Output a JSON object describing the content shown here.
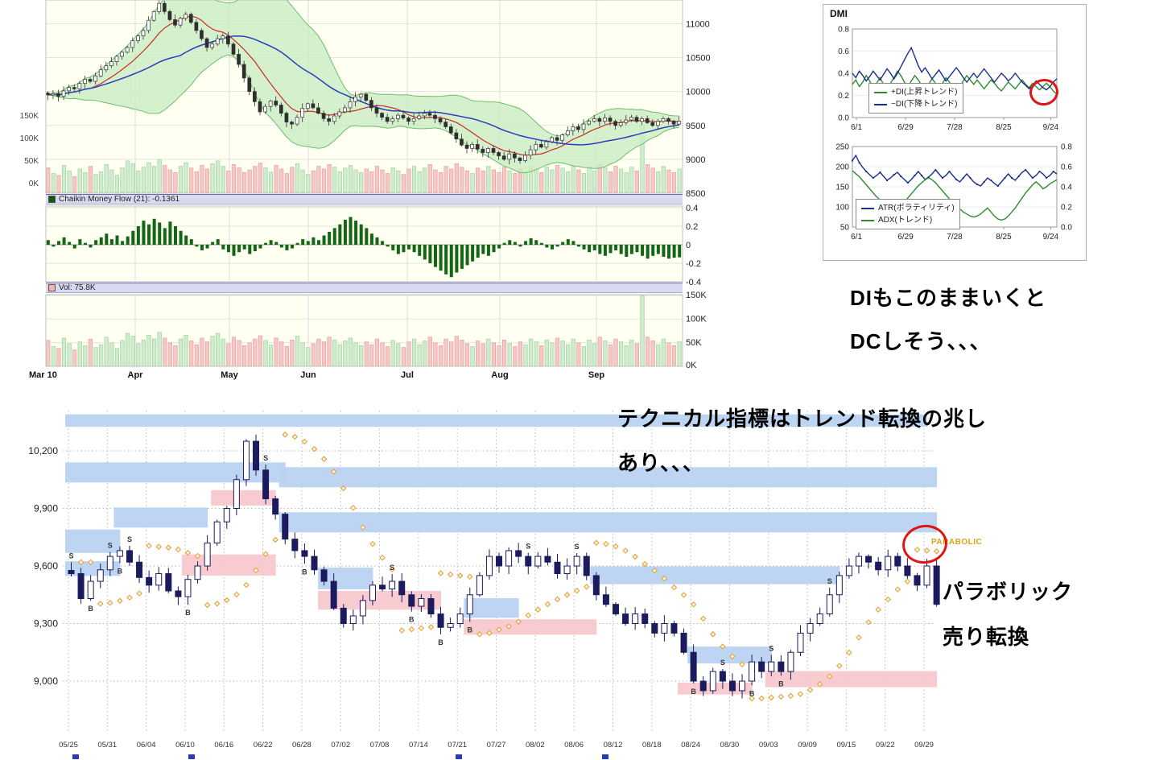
{
  "page": {
    "background": "#ffffff"
  },
  "annotations": {
    "dmi_comment_line1": "DIもこのままいくと",
    "dmi_comment_line2": "DCしそう、、、",
    "trend_comment_line1": "テクニカル指標はトレンド転換の兆し",
    "trend_comment_line2": "あり、、、",
    "parabolic_chart_label": "PARABOLIC",
    "parabolic_comment_line1": "パラボリック",
    "parabolic_comment_line2": "売り転換"
  },
  "colors": {
    "plot_bg": "#fffff2",
    "bollinger_fill": "#c9ecc2",
    "bollinger_edge": "#6cbf6c",
    "ma_fast": "#cc2b2b",
    "ma_slow": "#2b3dbb",
    "cmf_bar": "#136613",
    "vol_up": "#cfeccd",
    "vol_down": "#f7c6c6",
    "candle_dark": "#1b1b5e",
    "zone_blue": "#b9d3f2",
    "zone_pink": "#f8c8cd",
    "sar_dot": "#e5a23a",
    "red_circle": "#e01414",
    "di_plus": "#2e8b2e",
    "di_minus": "#1c2f8a"
  },
  "chart_data": [
    {
      "id": "main-price",
      "type": "candlestick",
      "x_labels": [
        "Mar 10",
        "Apr",
        "May",
        "Jun",
        "Jul",
        "Aug",
        "Sep"
      ],
      "y_ticks_right": [
        11000,
        10500,
        10000,
        9500,
        9000,
        8500
      ],
      "volume_y_ticks": [
        "150K",
        "100K",
        "50K",
        "0K"
      ],
      "overlays": [
        "Bollinger Bands",
        "fast MA (red)",
        "slow MA (blue)",
        "volume bars"
      ],
      "ylim": [
        8500,
        11350
      ],
      "closes": [
        9950,
        9970,
        9930,
        10010,
        10060,
        10040,
        10120,
        10180,
        10150,
        10230,
        10320,
        10380,
        10440,
        10520,
        10580,
        10650,
        10750,
        10820,
        10900,
        11050,
        11180,
        11300,
        11180,
        11060,
        10980,
        11080,
        11140,
        11020,
        10900,
        10780,
        10650,
        10700,
        10780,
        10820,
        10700,
        10550,
        10400,
        10200,
        10000,
        9850,
        9700,
        9780,
        9860,
        9800,
        9680,
        9550,
        9520,
        9620,
        9750,
        9820,
        9760,
        9680,
        9600,
        9560,
        9640,
        9700,
        9760,
        9850,
        9920,
        9960,
        9870,
        9760,
        9680,
        9620,
        9560,
        9600,
        9650,
        9610,
        9560,
        9600,
        9640,
        9680,
        9650,
        9600,
        9550,
        9480,
        9390,
        9300,
        9210,
        9160,
        9220,
        9150,
        9100,
        9160,
        9100,
        9050,
        9000,
        9080,
        9020,
        8980,
        9060,
        9140,
        9220,
        9180,
        9260,
        9320,
        9280,
        9360,
        9420,
        9480,
        9440,
        9520,
        9560,
        9600,
        9560,
        9610,
        9560,
        9500,
        9540,
        9580,
        9620,
        9560,
        9600,
        9540,
        9500,
        9560,
        9600,
        9560,
        9520,
        9560
      ],
      "volume_k": [
        55,
        42,
        38,
        60,
        48,
        35,
        52,
        44,
        58,
        40,
        46,
        62,
        50,
        38,
        55,
        70,
        64,
        48,
        56,
        66,
        58,
        72,
        60,
        50,
        44,
        58,
        66,
        54,
        46,
        60,
        52,
        64,
        70,
        58,
        48,
        62,
        55,
        44,
        50,
        58,
        65,
        55,
        45,
        60,
        52,
        42,
        56,
        64,
        50,
        40,
        48,
        58,
        52,
        62,
        56,
        46,
        54,
        60,
        50,
        44,
        52,
        46,
        58,
        50,
        42,
        55,
        48,
        40,
        52,
        58,
        46,
        54,
        62,
        50,
        44,
        58,
        52,
        64,
        56,
        48,
        42,
        54,
        48,
        58,
        50,
        44,
        56,
        48,
        42,
        52,
        46,
        58,
        52,
        44,
        56,
        50,
        60,
        54,
        46,
        58,
        50,
        42,
        56,
        48,
        62,
        54,
        46,
        58,
        52,
        44,
        56,
        48,
        150,
        62,
        54,
        46,
        58,
        50,
        44,
        52
      ]
    },
    {
      "id": "chaikin-money-flow",
      "type": "bar",
      "title": "Chaikin Money Flow (21): -0.1361",
      "y_ticks": [
        "0.4",
        "0.2",
        "0",
        "-0.2",
        "-0.4"
      ],
      "values": [
        0.05,
        -0.02,
        0.04,
        0.08,
        0.03,
        -0.04,
        0.06,
        0.02,
        -0.03,
        0.05,
        0.08,
        0.12,
        0.06,
        0.1,
        0.04,
        0.09,
        0.15,
        0.2,
        0.26,
        0.22,
        0.28,
        0.24,
        0.18,
        0.25,
        0.2,
        0.15,
        0.1,
        0.06,
        -0.02,
        -0.06,
        -0.04,
        0.03,
        0.06,
        -0.05,
        -0.08,
        -0.12,
        -0.08,
        -0.05,
        -0.1,
        -0.07,
        -0.04,
        0.02,
        0.05,
        0.03,
        -0.03,
        -0.06,
        -0.04,
        0.02,
        0.06,
        0.04,
        0.08,
        0.05,
        0.1,
        0.14,
        0.18,
        0.22,
        0.27,
        0.3,
        0.26,
        0.22,
        0.18,
        0.12,
        0.08,
        0.04,
        -0.02,
        -0.06,
        -0.1,
        -0.08,
        -0.05,
        -0.08,
        -0.12,
        -0.16,
        -0.2,
        -0.24,
        -0.28,
        -0.32,
        -0.35,
        -0.3,
        -0.26,
        -0.22,
        -0.18,
        -0.14,
        -0.1,
        -0.12,
        -0.08,
        -0.04,
        0.02,
        0.05,
        0.03,
        -0.02,
        0.04,
        0.07,
        0.05,
        0.02,
        -0.03,
        -0.05,
        -0.02,
        0.03,
        0.06,
        0.04,
        -0.02,
        -0.05,
        -0.08,
        -0.06,
        -0.1,
        -0.12,
        -0.09,
        -0.06,
        -0.1,
        -0.13,
        -0.1,
        -0.08,
        -0.12,
        -0.15,
        -0.12,
        -0.1,
        -0.13,
        -0.15,
        -0.14,
        -0.1361
      ]
    },
    {
      "id": "volume-panel",
      "type": "bar",
      "title": "Vol: 75.8K",
      "y_ticks": [
        "150K",
        "100K",
        "50K",
        "0K"
      ]
    },
    {
      "id": "dmi-di",
      "type": "line",
      "title": "DMI",
      "y_ticks": [
        "0.8",
        "0.6",
        "0.4",
        "0.2",
        "0.0"
      ],
      "x_labels": [
        "6/1",
        "6/29",
        "7/28",
        "8/25",
        "9/24"
      ],
      "series": [
        {
          "name": "+DI(上昇トレンド)",
          "color": "#2e8b2e",
          "values": [
            0.3,
            0.34,
            0.28,
            0.32,
            0.38,
            0.33,
            0.27,
            0.31,
            0.36,
            0.3,
            0.26,
            0.31,
            0.36,
            0.42,
            0.38,
            0.32,
            0.28,
            0.33,
            0.38,
            0.34,
            0.29,
            0.25,
            0.3,
            0.35,
            0.31,
            0.27,
            0.31,
            0.36,
            0.32,
            0.28,
            0.24,
            0.28,
            0.33,
            0.38,
            0.34,
            0.3,
            0.34,
            0.3,
            0.26,
            0.3,
            0.34,
            0.31,
            0.27,
            0.24,
            0.28,
            0.32,
            0.29,
            0.26,
            0.3,
            0.34,
            0.3,
            0.27,
            0.31,
            0.28,
            0.25,
            0.28,
            0.31,
            0.28,
            0.24,
            0.21
          ]
        },
        {
          "name": "−DI(下降トレンド)",
          "color": "#1c2f8a",
          "values": [
            0.4,
            0.36,
            0.42,
            0.38,
            0.33,
            0.37,
            0.42,
            0.38,
            0.34,
            0.39,
            0.44,
            0.4,
            0.35,
            0.4,
            0.46,
            0.52,
            0.58,
            0.63,
            0.55,
            0.47,
            0.41,
            0.45,
            0.4,
            0.35,
            0.39,
            0.43,
            0.38,
            0.33,
            0.37,
            0.41,
            0.45,
            0.41,
            0.36,
            0.32,
            0.36,
            0.4,
            0.36,
            0.4,
            0.44,
            0.4,
            0.36,
            0.32,
            0.36,
            0.4,
            0.37,
            0.33,
            0.36,
            0.4,
            0.36,
            0.32,
            0.29,
            0.26,
            0.29,
            0.33,
            0.3,
            0.27,
            0.25,
            0.28,
            0.32,
            0.35
          ]
        }
      ]
    },
    {
      "id": "dmi-atr-adx",
      "type": "line",
      "y_ticks_left": [
        "250",
        "200",
        "150",
        "100",
        "50"
      ],
      "y_ticks_right": [
        "0.8",
        "0.6",
        "0.4",
        "0.2",
        "0.0"
      ],
      "x_labels": [
        "6/1",
        "6/29",
        "7/28",
        "8/25",
        "9/24"
      ],
      "series": [
        {
          "name": "ATR(ボラティリティ)",
          "color": "#1c2f8a",
          "axis": "left",
          "values": [
            215,
            228,
            210,
            198,
            188,
            180,
            172,
            178,
            186,
            176,
            166,
            172,
            180,
            186,
            176,
            168,
            160,
            168,
            178,
            188,
            178,
            168,
            174,
            182,
            192,
            182,
            172,
            178,
            188,
            178,
            168,
            162,
            172,
            182,
            172,
            162,
            156,
            152,
            162,
            172,
            166,
            158,
            152,
            162,
            172,
            182,
            172,
            166,
            176,
            186,
            192,
            182,
            172,
            178,
            188,
            182,
            172,
            178,
            188,
            182
          ]
        },
        {
          "name": "ADX(トレンド)",
          "color": "#2e8b2e",
          "axis": "right",
          "values": [
            0.56,
            0.53,
            0.5,
            0.46,
            0.42,
            0.38,
            0.34,
            0.3,
            0.27,
            0.24,
            0.21,
            0.19,
            0.17,
            0.18,
            0.21,
            0.25,
            0.29,
            0.33,
            0.37,
            0.41,
            0.44,
            0.47,
            0.49,
            0.47,
            0.44,
            0.4,
            0.36,
            0.32,
            0.28,
            0.24,
            0.21,
            0.18,
            0.15,
            0.13,
            0.11,
            0.1,
            0.11,
            0.13,
            0.16,
            0.19,
            0.15,
            0.11,
            0.08,
            0.07,
            0.08,
            0.11,
            0.15,
            0.19,
            0.24,
            0.29,
            0.34,
            0.38,
            0.42,
            0.45,
            0.42,
            0.38,
            0.4,
            0.43,
            0.45,
            0.47
          ]
        }
      ]
    },
    {
      "id": "daily-parabolic",
      "type": "candlestick",
      "indicator": "Parabolic SAR",
      "y_ticks": [
        "10,200",
        "9,900",
        "9,600",
        "9,300",
        "9,000"
      ],
      "x_labels": [
        "05/25",
        "05/31",
        "06/04",
        "06/10",
        "06/16",
        "06/22",
        "06/28",
        "07/02",
        "07/08",
        "07/14",
        "07/21",
        "07/27",
        "08/02",
        "08/06",
        "08/12",
        "08/18",
        "08/24",
        "08/30",
        "09/03",
        "09/09",
        "09/15",
        "09/22",
        "09/29"
      ],
      "closes": [
        9560,
        9430,
        9520,
        9580,
        9650,
        9680,
        9620,
        9540,
        9500,
        9560,
        9470,
        9440,
        9530,
        9600,
        9720,
        9830,
        9900,
        10050,
        10250,
        10100,
        9950,
        9870,
        9740,
        9680,
        9650,
        9580,
        9520,
        9380,
        9300,
        9340,
        9420,
        9500,
        9480,
        9520,
        9450,
        9390,
        9430,
        9350,
        9280,
        9300,
        9350,
        9450,
        9550,
        9650,
        9600,
        9680,
        9650,
        9600,
        9650,
        9620,
        9560,
        9600,
        9650,
        9550,
        9450,
        9400,
        9350,
        9300,
        9350,
        9300,
        9250,
        9300,
        9250,
        9150,
        9000,
        8950,
        9050,
        9000,
        8950,
        9000,
        9100,
        9050,
        9100,
        9050,
        9150,
        9250,
        9300,
        9350,
        9450,
        9550,
        9600,
        9650,
        9620,
        9580,
        9650,
        9600,
        9550,
        9500,
        9600,
        9400
      ],
      "zones": [
        [
          0,
          88,
          10390,
          10325,
          "blue"
        ],
        [
          0,
          22,
          10140,
          10035,
          "blue"
        ],
        [
          22,
          89,
          10115,
          10010,
          "blue"
        ],
        [
          5,
          14,
          9905,
          9800,
          "blue"
        ],
        [
          22,
          89,
          9880,
          9775,
          "blue"
        ],
        [
          15,
          21,
          9995,
          9915,
          "pink"
        ],
        [
          12,
          21,
          9660,
          9550,
          "pink"
        ],
        [
          0,
          5,
          9790,
          9668,
          "blue"
        ],
        [
          0,
          5,
          9625,
          9548,
          "blue"
        ],
        [
          26,
          38,
          9470,
          9372,
          "pink"
        ],
        [
          26,
          31,
          9592,
          9478,
          "blue"
        ],
        [
          41,
          54,
          9322,
          9242,
          "pink"
        ],
        [
          41,
          46,
          9432,
          9330,
          "blue"
        ],
        [
          54,
          79,
          9598,
          9505,
          "blue"
        ],
        [
          72,
          89,
          9052,
          8968,
          "pink"
        ],
        [
          64,
          72,
          9180,
          9092,
          "blue"
        ],
        [
          63,
          70,
          8992,
          8930,
          "pink"
        ]
      ],
      "signals": [
        [
          0,
          "S"
        ],
        [
          2,
          "B"
        ],
        [
          4,
          "S"
        ],
        [
          5,
          "B"
        ],
        [
          6,
          "S"
        ],
        [
          12,
          "B"
        ],
        [
          20,
          "S"
        ],
        [
          24,
          "B"
        ],
        [
          33,
          "S"
        ],
        [
          35,
          "B"
        ],
        [
          38,
          "B"
        ],
        [
          41,
          "B"
        ],
        [
          47,
          "S"
        ],
        [
          52,
          "S"
        ],
        [
          64,
          "B"
        ],
        [
          67,
          "S"
        ],
        [
          70,
          "B"
        ],
        [
          72,
          "S"
        ],
        [
          73,
          "B"
        ],
        [
          78,
          "S"
        ]
      ]
    }
  ]
}
